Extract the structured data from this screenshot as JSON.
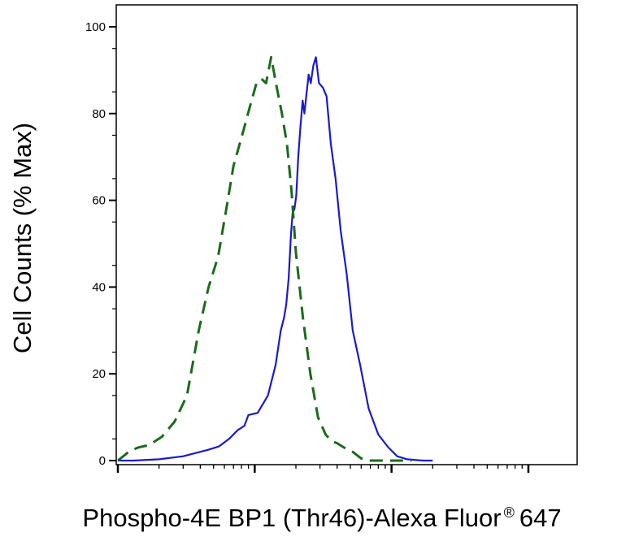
{
  "chart_data": {
    "type": "line",
    "title": "",
    "xlabel": "Phospho-4E BP1 (Thr46)-Alexa Fluor",
    "xlabel_mark": "®",
    "xlabel_suffix": "647",
    "ylabel": "Cell Counts (% Max)",
    "xscale": "log",
    "xlim": [
      1,
      1000
    ],
    "ylim": [
      0,
      100
    ],
    "yticks": [
      0,
      20,
      40,
      60,
      80,
      100
    ],
    "ytick_labels": [
      "0",
      "20",
      "40",
      "60",
      "80",
      "100"
    ],
    "grid": false,
    "legend": "none",
    "series": [
      {
        "color": "#1a1acc",
        "style": "solid",
        "x": [
          1,
          1.3,
          2,
          3,
          4.6,
          5.5,
          6.5,
          7.5,
          8.4,
          9,
          10.5,
          12.5,
          14.2,
          15.5,
          16.4,
          17,
          17.7,
          18.4,
          18.9,
          19.5,
          20.1,
          20.8,
          21.6,
          22.4,
          23.1,
          24,
          24.8,
          25.7,
          26.8,
          28,
          29.5,
          31.5,
          33.5,
          36,
          39,
          42.5,
          47,
          52,
          59,
          68,
          80,
          95,
          110,
          130,
          170,
          200
        ],
        "y": [
          0,
          0,
          0.3,
          1,
          2.5,
          3.3,
          5,
          7,
          8,
          10.5,
          11,
          15,
          22,
          30,
          33,
          36,
          42,
          52,
          57,
          58,
          61,
          70,
          77,
          83,
          80,
          85,
          89,
          87,
          91,
          93,
          87,
          86,
          84,
          73,
          65,
          53,
          43,
          30,
          22,
          12,
          6,
          3,
          1,
          0.3,
          0,
          0
        ]
      },
      {
        "color": "#1b6b1b",
        "style": "dashed",
        "x": [
          1,
          1.2,
          1.4,
          1.7,
          2.1,
          2.6,
          3.2,
          3.9,
          4.6,
          5.4,
          6.2,
          7,
          8.1,
          9.3,
          10.3,
          11.2,
          12.1,
          13.2,
          14.5,
          15.8,
          17.2,
          18.6,
          20,
          22.5,
          25.5,
          29,
          33,
          36.5,
          40,
          45,
          52,
          60,
          70,
          82,
          110,
          140
        ],
        "y": [
          0,
          2,
          3,
          3.6,
          5.5,
          9,
          15,
          30,
          40,
          47,
          58,
          68,
          75,
          82,
          87,
          88,
          87,
          93,
          86,
          80,
          73,
          62,
          48,
          33,
          20,
          10,
          6,
          4.5,
          4,
          3,
          2,
          0.5,
          0,
          0,
          0,
          0
        ]
      }
    ]
  }
}
